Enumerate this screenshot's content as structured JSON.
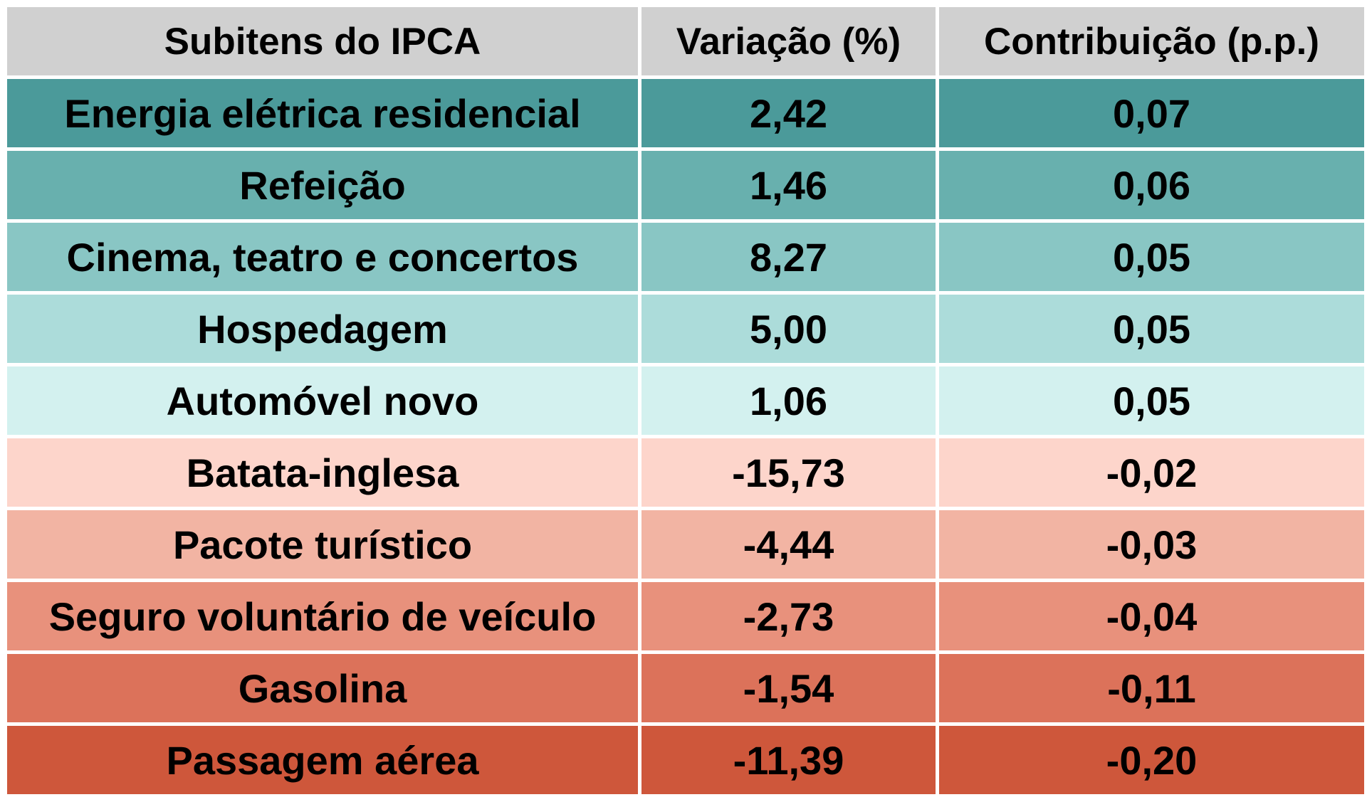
{
  "table": {
    "headers": [
      "Subitens do IPCA",
      "Variação (%)",
      "Contribuição (p.p.)"
    ],
    "header_color": "#d0d0d0",
    "rows": [
      {
        "item": "Energia elétrica residencial",
        "variacao": "2,42",
        "contribuicao": "0,07",
        "color": "#4b9a9a"
      },
      {
        "item": "Refeição",
        "variacao": "1,46",
        "contribuicao": "0,06",
        "color": "#68b0ae"
      },
      {
        "item": "Cinema, teatro e concertos",
        "variacao": "8,27",
        "contribuicao": "0,05",
        "color": "#89c6c4"
      },
      {
        "item": "Hospedagem",
        "variacao": "5,00",
        "contribuicao": "0,05",
        "color": "#acdcda"
      },
      {
        "item": "Automóvel novo",
        "variacao": "1,06",
        "contribuicao": "0,05",
        "color": "#d3f1ef"
      },
      {
        "item": "Batata-inglesa",
        "variacao": "-15,73",
        "contribuicao": "-0,02",
        "color": "#fdd5cb"
      },
      {
        "item": "Pacote turístico",
        "variacao": "-4,44",
        "contribuicao": "-0,03",
        "color": "#f2b4a3"
      },
      {
        "item": "Seguro voluntário de veículo",
        "variacao": "-2,73",
        "contribuicao": "-0,04",
        "color": "#e8917c"
      },
      {
        "item": "Gasolina",
        "variacao": "-1,54",
        "contribuicao": "-0,11",
        "color": "#dc725a"
      },
      {
        "item": "Passagem aérea",
        "variacao": "-11,39",
        "contribuicao": "-0,20",
        "color": "#ce573b"
      }
    ]
  }
}
